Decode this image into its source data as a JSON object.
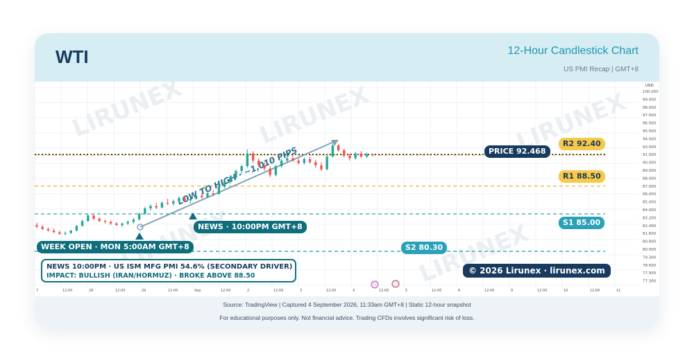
{
  "header": {
    "symbol": "WTI",
    "chart_kind": "12-Hour Candlestick Chart",
    "subtitle": "US PMI Recap | GMT+8"
  },
  "watermark": "LIRUNEX",
  "levels": {
    "price_label": "PRICE  92.468",
    "r2": "R2  92.40",
    "r1": "R1  88.50",
    "s1": "S1  85.00",
    "s2": "S2  80.30"
  },
  "annotations": {
    "low_to_high": "LOW TO HIGH · ~1,010 PIPS",
    "week_open": "WEEK OPEN · MON 5:00AM GMT+8",
    "news_time": "NEWS · 10:00PM GMT+8",
    "news_line1": "NEWS 10:00PM · US ISM MFG PMI 54.6% (SECONDARY DRIVER)",
    "news_line2": "IMPACT: BULLISH (IRAN/HORMUZ) · BROKE ABOVE 88.50",
    "copyright": "© 2026 Lirunex · lirunex.com"
  },
  "axis": {
    "currency": "USD",
    "price_ticks": [
      "100.000",
      "99.000",
      "98.000",
      "97.000",
      "96.000",
      "95.000",
      "94.000",
      "93.000",
      "91.000",
      "90.000",
      "89.000",
      "88.000",
      "87.000",
      "86.000",
      "85.000",
      "84.000",
      "83.200",
      "82.400",
      "81.600",
      "80.800",
      "80.000",
      "79.300",
      "78.600",
      "77.950",
      "77.300"
    ],
    "time_ticks": [
      "7",
      "12:00",
      "28",
      "12:00",
      "29",
      "12:00",
      "Sep",
      "12:00",
      "2",
      "12:00",
      "3",
      "12:00",
      "4",
      "12:00",
      "5",
      "12:00",
      "8",
      "12:00",
      "9",
      "12:00",
      "10",
      "12:00",
      "11"
    ]
  },
  "footer": {
    "source": "Source: TradingView | Captured 4 September 2026, 11:33am GMT+8 | Static 12-hour snapshot",
    "disclaimer": "For educational purposes only. Not financial advice. Trading CFDs involves significant risk of loss."
  },
  "colors": {
    "navy": "#173a5e",
    "teal": "#0f6e7c",
    "yellow": "#f7c948",
    "cyan": "#2aa1b8",
    "bull": "#26a69a",
    "bear": "#ef5350",
    "header_bg": "#d6eef3"
  },
  "chart_data": {
    "type": "candlestick",
    "title": "12-Hour Candlestick Chart",
    "y_unit": "USD",
    "ylim": [
      77.3,
      100.0
    ],
    "reference_lines": [
      {
        "name": "R2",
        "value": 92.4
      },
      {
        "name": "R1",
        "value": 88.5
      },
      {
        "name": "S1",
        "value": 85.0
      },
      {
        "name": "S2",
        "value": 80.3
      },
      {
        "name": "PRICE",
        "value": 92.468
      }
    ],
    "grid": true,
    "candles": [
      {
        "o": 83.6,
        "h": 83.9,
        "l": 83.2,
        "c": 83.4
      },
      {
        "o": 83.4,
        "h": 83.6,
        "l": 83.0,
        "c": 83.1
      },
      {
        "o": 83.1,
        "h": 83.3,
        "l": 82.8,
        "c": 82.9
      },
      {
        "o": 82.9,
        "h": 83.2,
        "l": 82.6,
        "c": 82.7
      },
      {
        "o": 82.7,
        "h": 82.9,
        "l": 82.4,
        "c": 82.5
      },
      {
        "o": 82.5,
        "h": 82.8,
        "l": 82.3,
        "c": 82.6
      },
      {
        "o": 82.6,
        "h": 83.0,
        "l": 82.5,
        "c": 82.9
      },
      {
        "o": 82.9,
        "h": 83.6,
        "l": 82.8,
        "c": 83.5
      },
      {
        "o": 83.5,
        "h": 84.3,
        "l": 83.4,
        "c": 84.1
      },
      {
        "o": 84.1,
        "h": 85.0,
        "l": 84.0,
        "c": 84.8
      },
      {
        "o": 84.8,
        "h": 85.0,
        "l": 84.2,
        "c": 84.4
      },
      {
        "o": 84.4,
        "h": 84.6,
        "l": 84.0,
        "c": 84.1
      },
      {
        "o": 84.1,
        "h": 84.3,
        "l": 83.8,
        "c": 84.0
      },
      {
        "o": 84.0,
        "h": 84.2,
        "l": 83.6,
        "c": 83.8
      },
      {
        "o": 83.8,
        "h": 84.0,
        "l": 83.5,
        "c": 83.6
      },
      {
        "o": 83.6,
        "h": 83.9,
        "l": 83.3,
        "c": 83.8
      },
      {
        "o": 83.8,
        "h": 84.2,
        "l": 83.6,
        "c": 84.0
      },
      {
        "o": 84.0,
        "h": 84.5,
        "l": 83.8,
        "c": 84.3
      },
      {
        "o": 84.3,
        "h": 85.2,
        "l": 84.2,
        "c": 85.0
      },
      {
        "o": 85.0,
        "h": 85.9,
        "l": 84.9,
        "c": 85.7
      },
      {
        "o": 85.7,
        "h": 86.2,
        "l": 85.4,
        "c": 86.0
      },
      {
        "o": 86.0,
        "h": 86.4,
        "l": 85.6,
        "c": 85.8
      },
      {
        "o": 85.8,
        "h": 86.6,
        "l": 85.7,
        "c": 86.4
      },
      {
        "o": 86.4,
        "h": 86.9,
        "l": 86.1,
        "c": 86.3
      },
      {
        "o": 86.3,
        "h": 86.8,
        "l": 86.0,
        "c": 86.6
      },
      {
        "o": 86.6,
        "h": 87.2,
        "l": 86.4,
        "c": 87.0
      },
      {
        "o": 87.0,
        "h": 87.3,
        "l": 86.5,
        "c": 86.7
      },
      {
        "o": 86.7,
        "h": 87.0,
        "l": 86.3,
        "c": 86.9
      },
      {
        "o": 86.9,
        "h": 87.5,
        "l": 86.8,
        "c": 87.3
      },
      {
        "o": 87.3,
        "h": 87.6,
        "l": 86.9,
        "c": 87.1
      },
      {
        "o": 87.1,
        "h": 87.8,
        "l": 87.0,
        "c": 87.6
      },
      {
        "o": 87.6,
        "h": 88.0,
        "l": 87.2,
        "c": 87.5
      },
      {
        "o": 87.5,
        "h": 88.6,
        "l": 87.4,
        "c": 88.4
      },
      {
        "o": 88.4,
        "h": 89.2,
        "l": 88.2,
        "c": 89.0
      },
      {
        "o": 89.0,
        "h": 89.8,
        "l": 88.8,
        "c": 89.6
      },
      {
        "o": 89.6,
        "h": 90.6,
        "l": 89.4,
        "c": 90.4
      },
      {
        "o": 90.4,
        "h": 91.2,
        "l": 90.0,
        "c": 91.0
      },
      {
        "o": 91.0,
        "h": 93.1,
        "l": 90.8,
        "c": 92.6
      },
      {
        "o": 92.6,
        "h": 92.9,
        "l": 91.4,
        "c": 91.7
      },
      {
        "o": 91.7,
        "h": 92.0,
        "l": 90.9,
        "c": 91.1
      },
      {
        "o": 91.1,
        "h": 91.5,
        "l": 90.4,
        "c": 90.7
      },
      {
        "o": 90.7,
        "h": 91.0,
        "l": 89.6,
        "c": 89.9
      },
      {
        "o": 89.9,
        "h": 91.2,
        "l": 89.7,
        "c": 91.0
      },
      {
        "o": 91.0,
        "h": 91.9,
        "l": 90.8,
        "c": 91.7
      },
      {
        "o": 91.7,
        "h": 92.2,
        "l": 91.4,
        "c": 92.0
      },
      {
        "o": 92.0,
        "h": 92.3,
        "l": 91.5,
        "c": 91.7
      },
      {
        "o": 91.7,
        "h": 92.0,
        "l": 91.2,
        "c": 91.4
      },
      {
        "o": 91.4,
        "h": 92.1,
        "l": 91.2,
        "c": 91.9
      },
      {
        "o": 91.9,
        "h": 92.2,
        "l": 91.3,
        "c": 91.5
      },
      {
        "o": 91.5,
        "h": 91.8,
        "l": 90.8,
        "c": 91.1
      },
      {
        "o": 91.1,
        "h": 91.5,
        "l": 90.4,
        "c": 90.6
      },
      {
        "o": 90.6,
        "h": 92.4,
        "l": 90.5,
        "c": 92.2
      },
      {
        "o": 92.2,
        "h": 93.8,
        "l": 92.1,
        "c": 93.6
      },
      {
        "o": 93.6,
        "h": 93.8,
        "l": 92.8,
        "c": 93.0
      },
      {
        "o": 93.0,
        "h": 93.2,
        "l": 92.1,
        "c": 92.3
      },
      {
        "o": 92.3,
        "h": 92.6,
        "l": 91.7,
        "c": 92.0
      },
      {
        "o": 92.0,
        "h": 92.8,
        "l": 91.8,
        "c": 92.6
      },
      {
        "o": 92.6,
        "h": 92.9,
        "l": 92.0,
        "c": 92.2
      },
      {
        "o": 92.2,
        "h": 92.7,
        "l": 92.0,
        "c": 92.5
      },
      {
        "o": 92.5,
        "h": 92.6,
        "l": 92.2,
        "c": 92.47
      }
    ]
  }
}
